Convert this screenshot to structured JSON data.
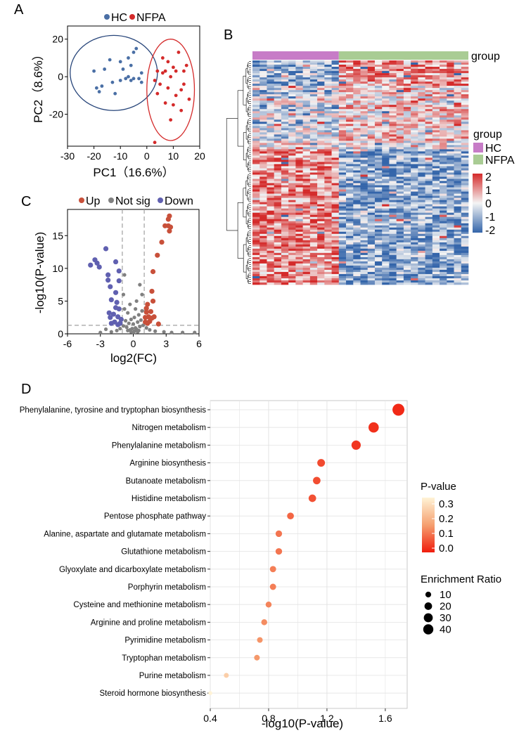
{
  "chart_data": [
    {
      "panel": "A",
      "type": "scatter",
      "title": "",
      "xlabel": "PC1（16.6%）",
      "ylabel": "PC2（8.6%）",
      "xlim": [
        -30,
        20
      ],
      "ylim": [
        -37,
        27
      ],
      "xticks": [
        "-30",
        "-20",
        "-10",
        "0",
        "10",
        "20"
      ],
      "yticks": [
        "20",
        "0",
        "-20"
      ],
      "legend": {
        "position": "top",
        "entries": [
          "HC",
          "NFPA"
        ]
      },
      "series": [
        {
          "name": "HC",
          "color": "#4a6fa5",
          "points": [
            [
              -20,
              3
            ],
            [
              -18,
              -8
            ],
            [
              -17,
              -5
            ],
            [
              -16,
              4
            ],
            [
              -14,
              9
            ],
            [
              -13,
              -3
            ],
            [
              -12,
              -9
            ],
            [
              -10,
              -2
            ],
            [
              -10,
              8
            ],
            [
              -9,
              4
            ],
            [
              -8,
              -1
            ],
            [
              -7,
              0
            ],
            [
              -7,
              10
            ],
            [
              -6,
              -2
            ],
            [
              -6,
              6
            ],
            [
              -5,
              -1
            ],
            [
              -5,
              13
            ],
            [
              -4,
              15
            ],
            [
              -3,
              -1
            ],
            [
              -2,
              2
            ],
            [
              -2,
              -3
            ],
            [
              -19,
              -6
            ]
          ]
        },
        {
          "name": "NFPA",
          "color": "#d42a2a",
          "points": [
            [
              3,
              -35
            ],
            [
              3,
              -2
            ],
            [
              4,
              3
            ],
            [
              4,
              -9
            ],
            [
              5,
              -4
            ],
            [
              6,
              2
            ],
            [
              6,
              10
            ],
            [
              7,
              3
            ],
            [
              7,
              -14
            ],
            [
              8,
              -6
            ],
            [
              8,
              8
            ],
            [
              9,
              0
            ],
            [
              10,
              5
            ],
            [
              10,
              -15
            ],
            [
              11,
              -10
            ],
            [
              12,
              13
            ],
            [
              13,
              -7
            ],
            [
              13,
              -18
            ],
            [
              14,
              3
            ],
            [
              14,
              -4
            ],
            [
              15,
              6
            ],
            [
              16,
              -12
            ],
            [
              9,
              -23
            ],
            [
              11,
              3
            ]
          ]
        }
      ],
      "ellipses": [
        {
          "series": "HC",
          "center": [
            -12.5,
            2
          ],
          "rx": 16.5,
          "ry": 20,
          "color": "#27457a"
        },
        {
          "series": "NFPA",
          "center": [
            9,
            -7
          ],
          "rx": 9,
          "ry": 27,
          "color": "#d42a2a"
        }
      ]
    },
    {
      "panel": "B",
      "type": "heatmap",
      "annotation_label": "group",
      "legend_title": "group",
      "groups": [
        {
          "name": "HC",
          "color": "#c77cc7"
        },
        {
          "name": "NFPA",
          "color": "#a9cc94"
        }
      ],
      "color_scale": {
        "min": -2,
        "max": 2,
        "low": "#3465aa",
        "mid": "#f4f4f4",
        "high": "#d42a2a"
      },
      "scale_ticks": [
        "2",
        "1",
        "0",
        "-1",
        "-2"
      ]
    },
    {
      "panel": "C",
      "type": "scatter",
      "title": "",
      "xlabel": "log2(FC)",
      "ylabel": "-log10(P-value)",
      "xlim": [
        -6,
        6
      ],
      "ylim": [
        0,
        19
      ],
      "xticks": [
        "-6",
        "-3",
        "0",
        "3",
        "6"
      ],
      "yticks": [
        "0",
        "5",
        "10",
        "15"
      ],
      "thresholds": {
        "fc": [
          -1,
          1
        ],
        "p": 1.3
      },
      "legend": {
        "position": "top",
        "entries": [
          "Up",
          "Not sig",
          "Down"
        ]
      },
      "series": [
        {
          "name": "Up",
          "color": "#c8503a",
          "points": [
            [
              3.3,
              18
            ],
            [
              3.2,
              17.5
            ],
            [
              3.2,
              16.5
            ],
            [
              2.9,
              16.5
            ],
            [
              3.4,
              16.3
            ],
            [
              2.6,
              14
            ],
            [
              3.3,
              15.7
            ],
            [
              2.2,
              12
            ],
            [
              1.8,
              9.5
            ],
            [
              1.7,
              6.5
            ],
            [
              1.8,
              5
            ],
            [
              1.3,
              4.5
            ],
            [
              1.2,
              3.9
            ],
            [
              1.6,
              3.4
            ],
            [
              1.2,
              3.3
            ],
            [
              1.9,
              2.6
            ],
            [
              1.4,
              2.6
            ],
            [
              1.7,
              2.4
            ],
            [
              1.1,
              2.5
            ],
            [
              1.3,
              1.6
            ],
            [
              2.3,
              1.5
            ],
            [
              1.5,
              1.9
            ],
            [
              1.1,
              1.8
            ]
          ]
        },
        {
          "name": "Not sig",
          "color": "#808080",
          "points": [
            [
              -0.8,
              9
            ],
            [
              -0.9,
              6
            ],
            [
              0.6,
              7.5
            ],
            [
              0.8,
              6
            ],
            [
              0.3,
              5
            ],
            [
              -0.3,
              4.5
            ],
            [
              0.2,
              3.8
            ],
            [
              -0.5,
              3.2
            ],
            [
              0.5,
              2.9
            ],
            [
              0.1,
              2.5
            ],
            [
              -0.2,
              2.2
            ],
            [
              0.7,
              2.1
            ],
            [
              -0.7,
              2.0
            ],
            [
              0.4,
              1.8
            ],
            [
              -0.4,
              1.6
            ],
            [
              0,
              1.5
            ],
            [
              0.9,
              1.3
            ],
            [
              -0.9,
              1.2
            ],
            [
              0.6,
              1.1
            ],
            [
              -0.6,
              1.0
            ],
            [
              0.2,
              0.9
            ],
            [
              -0.1,
              0.8
            ],
            [
              0.3,
              0.7
            ],
            [
              -0.3,
              0.6
            ],
            [
              0.5,
              0.5
            ],
            [
              -0.5,
              0.5
            ],
            [
              0.1,
              0.4
            ],
            [
              -0.2,
              0.3
            ],
            [
              0.4,
              0.3
            ],
            [
              0,
              0.2
            ],
            [
              1.5,
              0.6
            ],
            [
              -1.5,
              0.5
            ],
            [
              2,
              0.4
            ],
            [
              -2,
              0.3
            ],
            [
              2.8,
              0.3
            ],
            [
              -3,
              0.2
            ],
            [
              3.5,
              0.2
            ],
            [
              4.5,
              0.2
            ],
            [
              5.6,
              0.2
            ],
            [
              -2.5,
              0.7
            ],
            [
              1.2,
              0.9
            ],
            [
              -1.2,
              0.8
            ],
            [
              0.8,
              3.5
            ],
            [
              -0.8,
              3.8
            ]
          ]
        },
        {
          "name": "Down",
          "color": "#6060b0",
          "points": [
            [
              -2.5,
              13
            ],
            [
              -3.5,
              11.3
            ],
            [
              -3.3,
              10.8
            ],
            [
              -3.9,
              10.5
            ],
            [
              -3.1,
              10.2
            ],
            [
              -2.3,
              9
            ],
            [
              -1.6,
              11
            ],
            [
              -1.3,
              9.6
            ],
            [
              -1.3,
              8.1
            ],
            [
              -2.3,
              8.2
            ],
            [
              -2.1,
              7.2
            ],
            [
              -1.6,
              6.3
            ],
            [
              -2,
              5.2
            ],
            [
              -1.5,
              4.8
            ],
            [
              -1.6,
              4
            ],
            [
              -1.3,
              3.8
            ],
            [
              -2.2,
              3.2
            ],
            [
              -1.8,
              3.0
            ],
            [
              -1.4,
              2.6
            ],
            [
              -2.1,
              2.5
            ],
            [
              -1.1,
              2.2
            ],
            [
              -1.7,
              1.8
            ],
            [
              -1.2,
              1.6
            ],
            [
              -2,
              1.6
            ],
            [
              -1.4,
              1.4
            ]
          ]
        }
      ]
    },
    {
      "panel": "D",
      "type": "scatter",
      "title": "",
      "xlabel": "-log10(P-value)",
      "ylabel": "",
      "xlim": [
        0.4,
        1.75
      ],
      "xticks": [
        "0.4",
        "0.8",
        "1.2",
        "1.6"
      ],
      "size_legend_title": "Enrichment Ratio",
      "size_legend_values": [
        "10",
        "20",
        "30",
        "40"
      ],
      "color_legend_title": "P-value",
      "color_legend_ticks": [
        "0.3",
        "0.2",
        "0.1",
        "0.0"
      ],
      "pathways": [
        {
          "name": "Phenylalanine, tyrosine and tryptophan biosynthesis",
          "neglog10p": 1.69,
          "pvalue": 0.02,
          "ratio": 40
        },
        {
          "name": "Nitrogen metabolism",
          "neglog10p": 1.52,
          "pvalue": 0.03,
          "ratio": 28
        },
        {
          "name": "Phenylalanine metabolism",
          "neglog10p": 1.4,
          "pvalue": 0.04,
          "ratio": 22
        },
        {
          "name": "Arginine biosynthesis",
          "neglog10p": 1.16,
          "pvalue": 0.07,
          "ratio": 14
        },
        {
          "name": "Butanoate metabolism",
          "neglog10p": 1.13,
          "pvalue": 0.074,
          "ratio": 13
        },
        {
          "name": "Histidine metabolism",
          "neglog10p": 1.1,
          "pvalue": 0.08,
          "ratio": 13
        },
        {
          "name": "Pentose phosphate pathway",
          "neglog10p": 0.95,
          "pvalue": 0.11,
          "ratio": 10
        },
        {
          "name": "Alanine, aspartate and glutamate metabolism",
          "neglog10p": 0.87,
          "pvalue": 0.135,
          "ratio": 9
        },
        {
          "name": "Glutathione metabolism",
          "neglog10p": 0.87,
          "pvalue": 0.135,
          "ratio": 9
        },
        {
          "name": "Glyoxylate and dicarboxylate metabolism",
          "neglog10p": 0.83,
          "pvalue": 0.148,
          "ratio": 8
        },
        {
          "name": "Porphyrin metabolism",
          "neglog10p": 0.83,
          "pvalue": 0.148,
          "ratio": 8
        },
        {
          "name": "Cysteine and methionine metabolism",
          "neglog10p": 0.8,
          "pvalue": 0.158,
          "ratio": 7
        },
        {
          "name": "Arginine and proline metabolism",
          "neglog10p": 0.77,
          "pvalue": 0.17,
          "ratio": 7
        },
        {
          "name": "Pyrimidine metabolism",
          "neglog10p": 0.74,
          "pvalue": 0.182,
          "ratio": 6
        },
        {
          "name": "Tryptophan metabolism",
          "neglog10p": 0.72,
          "pvalue": 0.19,
          "ratio": 6
        },
        {
          "name": "Purine metabolism",
          "neglog10p": 0.51,
          "pvalue": 0.31,
          "ratio": 4
        },
        {
          "name": "Steroid hormone biosynthesis",
          "neglog10p": 0.4,
          "pvalue": 0.4,
          "ratio": 2
        }
      ]
    }
  ],
  "panel_labels": {
    "a": "A",
    "b": "B",
    "c": "C",
    "d": "D"
  },
  "legend_a": {
    "hc": "HC",
    "nfpa": "NFPA"
  },
  "legend_c": {
    "up": "Up",
    "notsig": "Not sig",
    "down": "Down"
  },
  "colors": {
    "hc": "#4a6fa5",
    "nfpa": "#d42a2a",
    "up": "#c8503a",
    "notsig": "#808080",
    "down": "#6060b0"
  }
}
